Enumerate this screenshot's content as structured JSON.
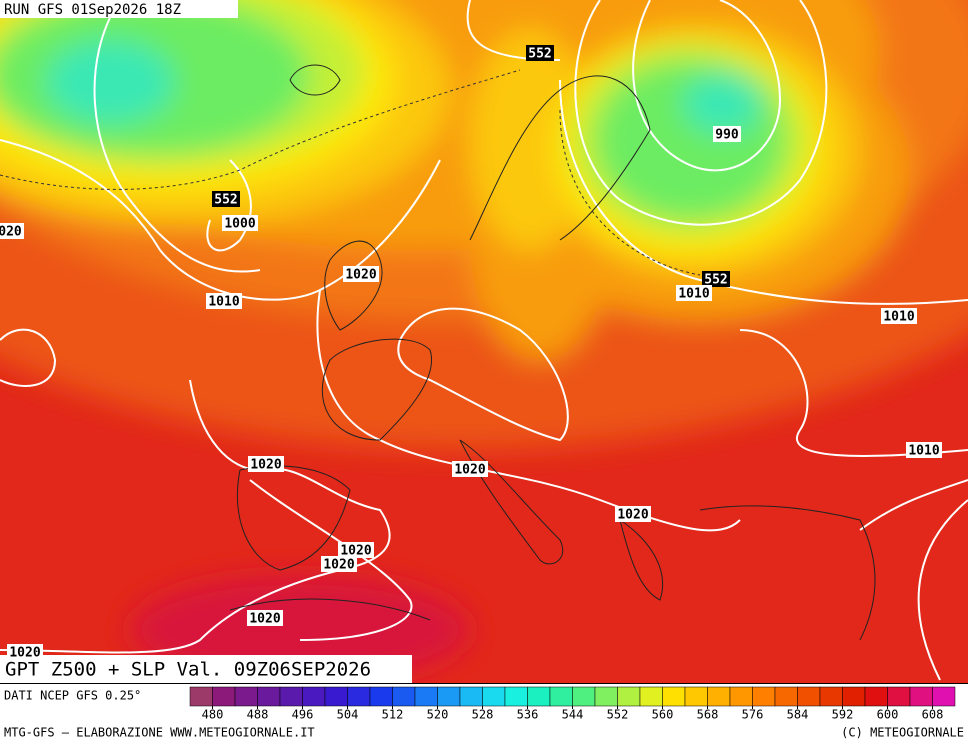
{
  "header": "RUN GFS 01Sep2026 18Z",
  "title": "GPT Z500 + SLP Val. 09Z06SEP2026",
  "source": "DATI NCEP GFS 0.25°",
  "footer_left": "MTG-GFS — ELABORAZIONE WWW.METEOGIORNALE.IT",
  "footer_right": "(C) METEOGIORNALE",
  "colorbar": {
    "ticks": [
      480,
      488,
      496,
      504,
      512,
      520,
      528,
      536,
      544,
      552,
      560,
      568,
      576,
      584,
      592,
      600,
      608
    ],
    "colors": [
      "#9c3a6a",
      "#8c1a7a",
      "#7a1a8c",
      "#6a1a9c",
      "#5a1aac",
      "#4a1ac0",
      "#3a1ad0",
      "#2a2ae0",
      "#1a3aee",
      "#1a5af0",
      "#1a7af5",
      "#1a9af5",
      "#1abaf5",
      "#1adaf0",
      "#1af0e0",
      "#1af0c0",
      "#30f0a0",
      "#50f080",
      "#80f060",
      "#b0f040",
      "#e0f020",
      "#ffe000",
      "#ffc800",
      "#ffb000",
      "#ff9800",
      "#ff8000",
      "#f86800",
      "#f05000",
      "#e83800",
      "#e02000",
      "#e01010",
      "#e01040",
      "#e01080",
      "#e010b0"
    ]
  },
  "geopotential_labels": [
    552,
    552,
    552
  ],
  "pressure_labels": [
    990,
    1000,
    1010,
    1020,
    1010,
    1010,
    1010,
    1020,
    1020,
    1020,
    1020,
    1020,
    1020,
    "020",
    1020
  ]
}
